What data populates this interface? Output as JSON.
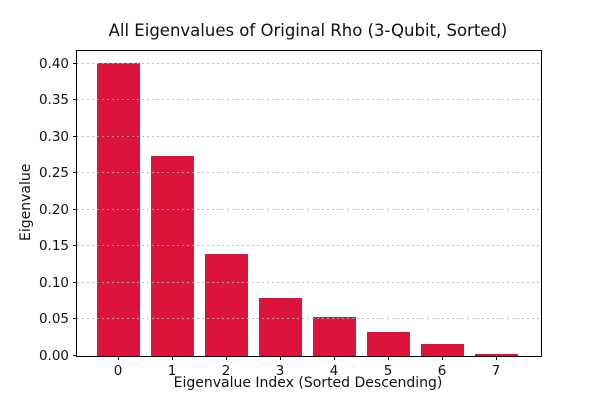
{
  "chart_data": {
    "type": "bar",
    "title": "All Eigenvalues of Original Rho (3-Qubit, Sorted)",
    "xlabel": "Eigenvalue Index (Sorted Descending)",
    "ylabel": "Eigenvalue",
    "categories": [
      "0",
      "1",
      "2",
      "3",
      "4",
      "5",
      "6",
      "7"
    ],
    "values": [
      0.401,
      0.274,
      0.139,
      0.079,
      0.054,
      0.033,
      0.017,
      0.003
    ],
    "yticks": [
      0.0,
      0.05,
      0.1,
      0.15,
      0.2,
      0.25,
      0.3,
      0.35,
      0.4
    ],
    "ytick_labels": [
      "0.00",
      "0.05",
      "0.10",
      "0.15",
      "0.20",
      "0.25",
      "0.30",
      "0.35",
      "0.40"
    ],
    "ylim": [
      0,
      0.4174
    ],
    "bar_color": "#DC143C",
    "grid": "horizontal-dotted-over-bars",
    "gridline_color": "#b2b2b2",
    "legend": "none"
  }
}
